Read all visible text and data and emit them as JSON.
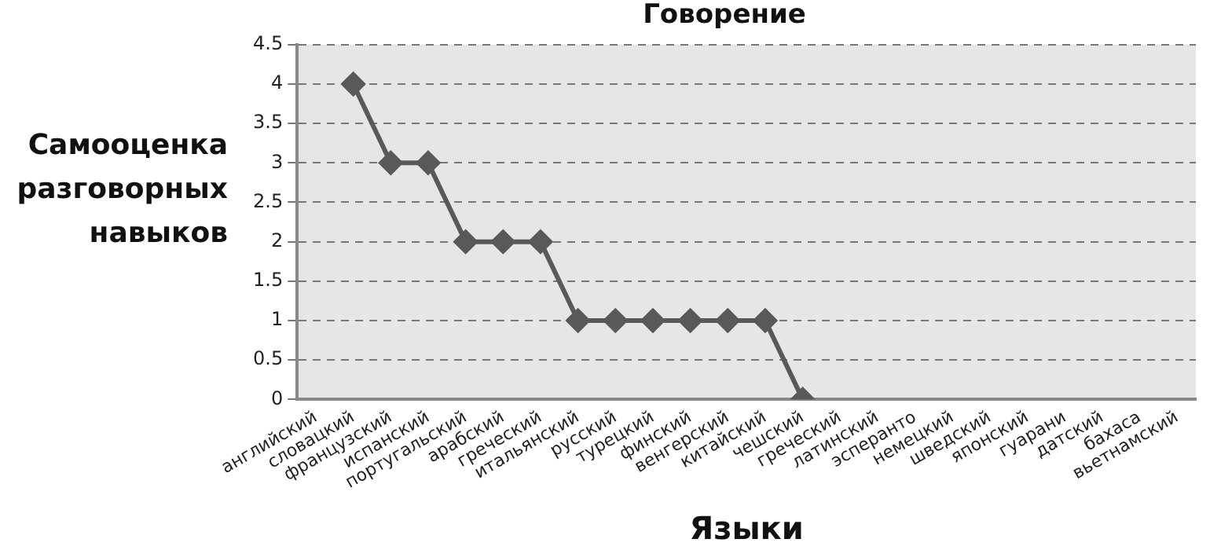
{
  "chart_data": {
    "type": "line",
    "title": "Говорение",
    "xlabel": "Языки",
    "ylabel": "Самооценка разговорных навыков",
    "categories": [
      "английский",
      "словацкий",
      "французский",
      "испанский",
      "португальский",
      "арабский",
      "греческий",
      "итальянский",
      "русский",
      "турецкий",
      "финский",
      "венгерский",
      "китайский",
      "чешский",
      "греческий",
      "латинский",
      "эсперанто",
      "немецкий",
      "шведский",
      "японский",
      "гуарани",
      "датский",
      "бахаса",
      "вьетнамский"
    ],
    "series": [
      {
        "color": "#595959",
        "values": [
          null,
          4,
          3,
          3,
          2,
          2,
          2,
          1,
          1,
          1,
          1,
          1,
          1,
          0,
          null,
          null,
          null,
          null,
          null,
          null,
          null,
          null,
          null,
          null
        ]
      }
    ],
    "ylim": [
      0,
      4.5
    ],
    "yticks": [
      0,
      0.5,
      1,
      1.5,
      2,
      2.5,
      3,
      3.5,
      4,
      4.5
    ],
    "grid": "y",
    "marker": "diamond",
    "line_style": "solid",
    "legend": false
  }
}
